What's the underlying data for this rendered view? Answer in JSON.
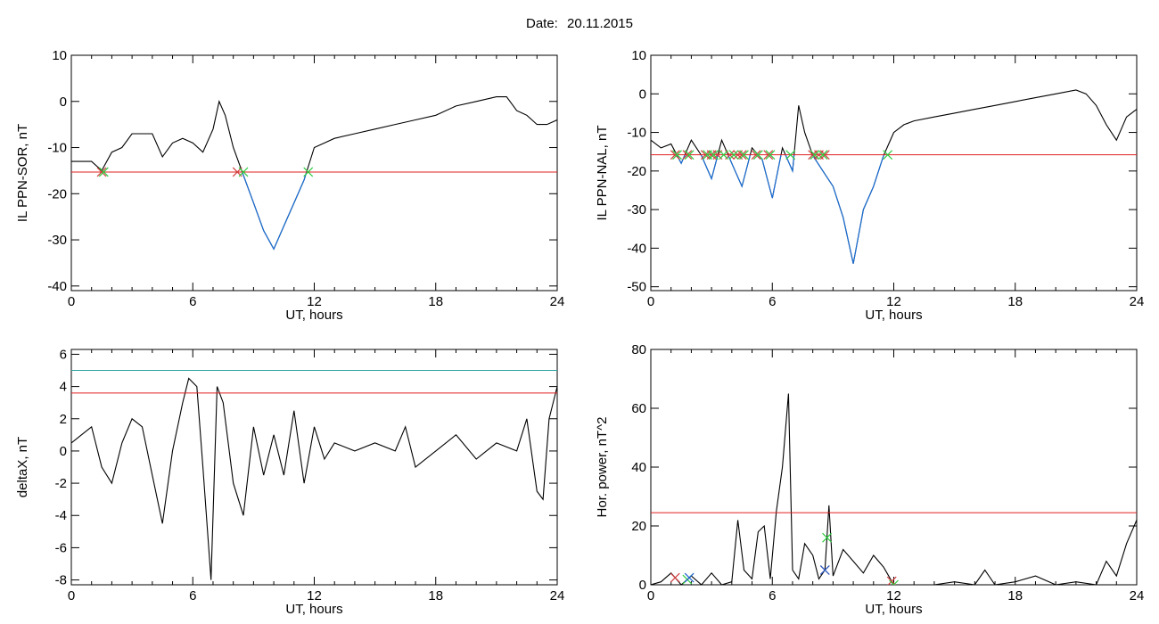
{
  "header": {
    "date_label": "Date:",
    "date_value": "20.11.2015"
  },
  "colors": {
    "axes": "#000000",
    "trace": "#000000",
    "below_threshold_trace": "#1a6fd6",
    "threshold": "#e02020",
    "threshold2": "#2aa0a0",
    "marker_start": "#d04040",
    "marker_end": "#2ecc40",
    "marker_peak": "#2060d0"
  },
  "chart_data": [
    {
      "type": "line",
      "ylabel": "IL PPN-SOR, nT",
      "xlabel": "UT, hours",
      "xlim": [
        0,
        24
      ],
      "ylim": [
        -41,
        10
      ],
      "xticks": [
        "0",
        "6",
        "12",
        "18",
        "24"
      ],
      "yticks": [
        "10",
        "0",
        "-10",
        "-20",
        "-30",
        "-40"
      ],
      "threshold": -15.3,
      "series": [
        {
          "x": [
            0,
            0.5,
            1.0,
            1.5,
            2.0,
            2.5,
            3.0,
            3.5,
            4.0,
            4.5,
            5.0,
            5.5,
            6.0,
            6.5,
            7.0,
            7.3,
            7.6,
            8.0,
            8.5,
            9.0,
            9.5,
            10.0,
            10.5,
            11.0,
            11.5,
            12.0,
            12.5,
            13.0,
            14.0,
            15.0,
            16.0,
            17.0,
            18.0,
            19.0,
            20.0,
            21.0,
            21.5,
            22.0,
            22.5,
            23.0,
            23.5,
            24.0
          ],
          "y": [
            -13,
            -13,
            -13,
            -15,
            -11,
            -10,
            -7,
            -7,
            -7,
            -12,
            -9,
            -8,
            -9,
            -11,
            -6,
            0,
            -3,
            -10,
            -16,
            -22,
            -28,
            -32,
            -27,
            -22,
            -17,
            -10,
            -9,
            -8,
            -7,
            -6,
            -5,
            -4,
            -3,
            -1,
            0,
            1,
            1,
            -2,
            -3,
            -5,
            -5,
            -4
          ]
        }
      ],
      "markers_start": [
        1.5,
        8.2
      ],
      "markers_end": [
        1.6,
        8.5,
        11.7
      ]
    },
    {
      "type": "line",
      "ylabel": "IL PPN-NAL, nT",
      "xlabel": "UT, hours",
      "xlim": [
        0,
        24
      ],
      "ylim": [
        -51,
        10
      ],
      "xticks": [
        "0",
        "6",
        "12",
        "18",
        "24"
      ],
      "yticks": [
        "10",
        "0",
        "-10",
        "-20",
        "-30",
        "-40",
        "-50"
      ],
      "threshold": -15.8,
      "series": [
        {
          "x": [
            0,
            0.5,
            1.0,
            1.5,
            2.0,
            2.5,
            3.0,
            3.5,
            4.0,
            4.5,
            5.0,
            5.5,
            6.0,
            6.5,
            7.0,
            7.3,
            7.6,
            8.0,
            8.5,
            9.0,
            9.5,
            10.0,
            10.5,
            11.0,
            11.5,
            12.0,
            12.5,
            13.0,
            14.0,
            15.0,
            16.0,
            17.0,
            18.0,
            19.0,
            20.0,
            21.0,
            21.5,
            22.0,
            22.5,
            23.0,
            23.5,
            24.0
          ],
          "y": [
            -12,
            -14,
            -13,
            -18,
            -12,
            -16,
            -22,
            -12,
            -18,
            -24,
            -14,
            -17,
            -27,
            -14,
            -20,
            -3,
            -10,
            -16,
            -20,
            -24,
            -32,
            -44,
            -30,
            -24,
            -16,
            -10,
            -8,
            -7,
            -6,
            -5,
            -4,
            -3,
            -2,
            -1,
            0,
            1,
            0,
            -3,
            -8,
            -12,
            -6,
            -4
          ]
        }
      ],
      "markers_start": [
        1.2,
        1.8,
        2.7,
        3.0,
        3.3,
        3.9,
        4.3,
        4.5,
        5.2,
        5.8,
        8.0,
        8.3,
        8.6
      ],
      "markers_end": [
        1.3,
        1.9,
        2.8,
        3.1,
        3.6,
        4.1,
        4.6,
        5.3,
        5.9,
        6.9,
        8.1,
        8.5,
        11.7
      ]
    },
    {
      "type": "line",
      "ylabel": "deltaX, nT",
      "xlabel": "UT, hours",
      "xlim": [
        0,
        24
      ],
      "ylim": [
        -8.3,
        6.3
      ],
      "xticks": [
        "0",
        "6",
        "12",
        "18",
        "24"
      ],
      "yticks": [
        "6",
        "4",
        "2",
        "0",
        "-2",
        "-4",
        "-6",
        "-8"
      ],
      "threshold": 3.6,
      "threshold2": 5.0,
      "series": [
        {
          "x": [
            0,
            0.5,
            1.0,
            1.5,
            2.0,
            2.5,
            3.0,
            3.5,
            4.0,
            4.5,
            5.0,
            5.5,
            5.8,
            6.2,
            6.5,
            6.9,
            7.2,
            7.5,
            8.0,
            8.5,
            9.0,
            9.5,
            10.0,
            10.5,
            11.0,
            11.5,
            12.0,
            12.5,
            13.0,
            14.0,
            15.0,
            16.0,
            16.5,
            17.0,
            18.0,
            19.0,
            20.0,
            21.0,
            22.0,
            22.5,
            23.0,
            23.3,
            23.6,
            24.0
          ],
          "y": [
            0.5,
            1.0,
            1.5,
            -1.0,
            -2.0,
            0.5,
            2.0,
            1.5,
            -1.5,
            -4.5,
            0.0,
            3.0,
            4.5,
            4.0,
            -1.0,
            -8.0,
            4.0,
            3.0,
            -2.0,
            -4.0,
            1.5,
            -1.5,
            1.0,
            -1.5,
            2.5,
            -2.0,
            1.5,
            -0.5,
            0.5,
            0.0,
            0.5,
            0.0,
            1.5,
            -1.0,
            0.0,
            1.0,
            -0.5,
            0.5,
            0.0,
            2.0,
            -2.5,
            -3.0,
            2.0,
            4.0
          ]
        }
      ]
    },
    {
      "type": "line",
      "ylabel": "Hor. power, nT^2",
      "xlabel": "UT, hours",
      "xlim": [
        0,
        24
      ],
      "ylim": [
        0,
        80
      ],
      "xticks": [
        "0",
        "6",
        "12",
        "18",
        "24"
      ],
      "yticks": [
        "80",
        "60",
        "40",
        "20",
        "0"
      ],
      "threshold": 24.5,
      "series": [
        {
          "x": [
            0,
            0.5,
            1.0,
            1.5,
            2.0,
            2.5,
            3.0,
            3.5,
            4.0,
            4.3,
            4.6,
            5.0,
            5.3,
            5.6,
            5.9,
            6.2,
            6.5,
            6.8,
            7.0,
            7.3,
            7.6,
            8.0,
            8.3,
            8.6,
            8.8,
            9.0,
            9.5,
            10.0,
            10.5,
            11.0,
            11.5,
            12.0,
            13.0,
            14.0,
            15.0,
            16.0,
            16.5,
            17.0,
            18.0,
            19.0,
            20.0,
            21.0,
            22.0,
            22.5,
            23.0,
            23.5,
            24.0
          ],
          "y": [
            0,
            1,
            4,
            0,
            3,
            0,
            4,
            0,
            1,
            22,
            5,
            2,
            18,
            20,
            2,
            25,
            40,
            65,
            5,
            2,
            14,
            10,
            2,
            5,
            27,
            3,
            12,
            8,
            4,
            10,
            6,
            0,
            0,
            0,
            1,
            0,
            5,
            0,
            1,
            3,
            0,
            1,
            0,
            8,
            3,
            14,
            22
          ]
        }
      ],
      "markers_start": [
        1.2,
        8.6,
        11.9
      ],
      "markers_end": [
        1.8,
        8.7,
        12.0
      ],
      "markers_peak": [
        1.9,
        8.6
      ]
    }
  ]
}
